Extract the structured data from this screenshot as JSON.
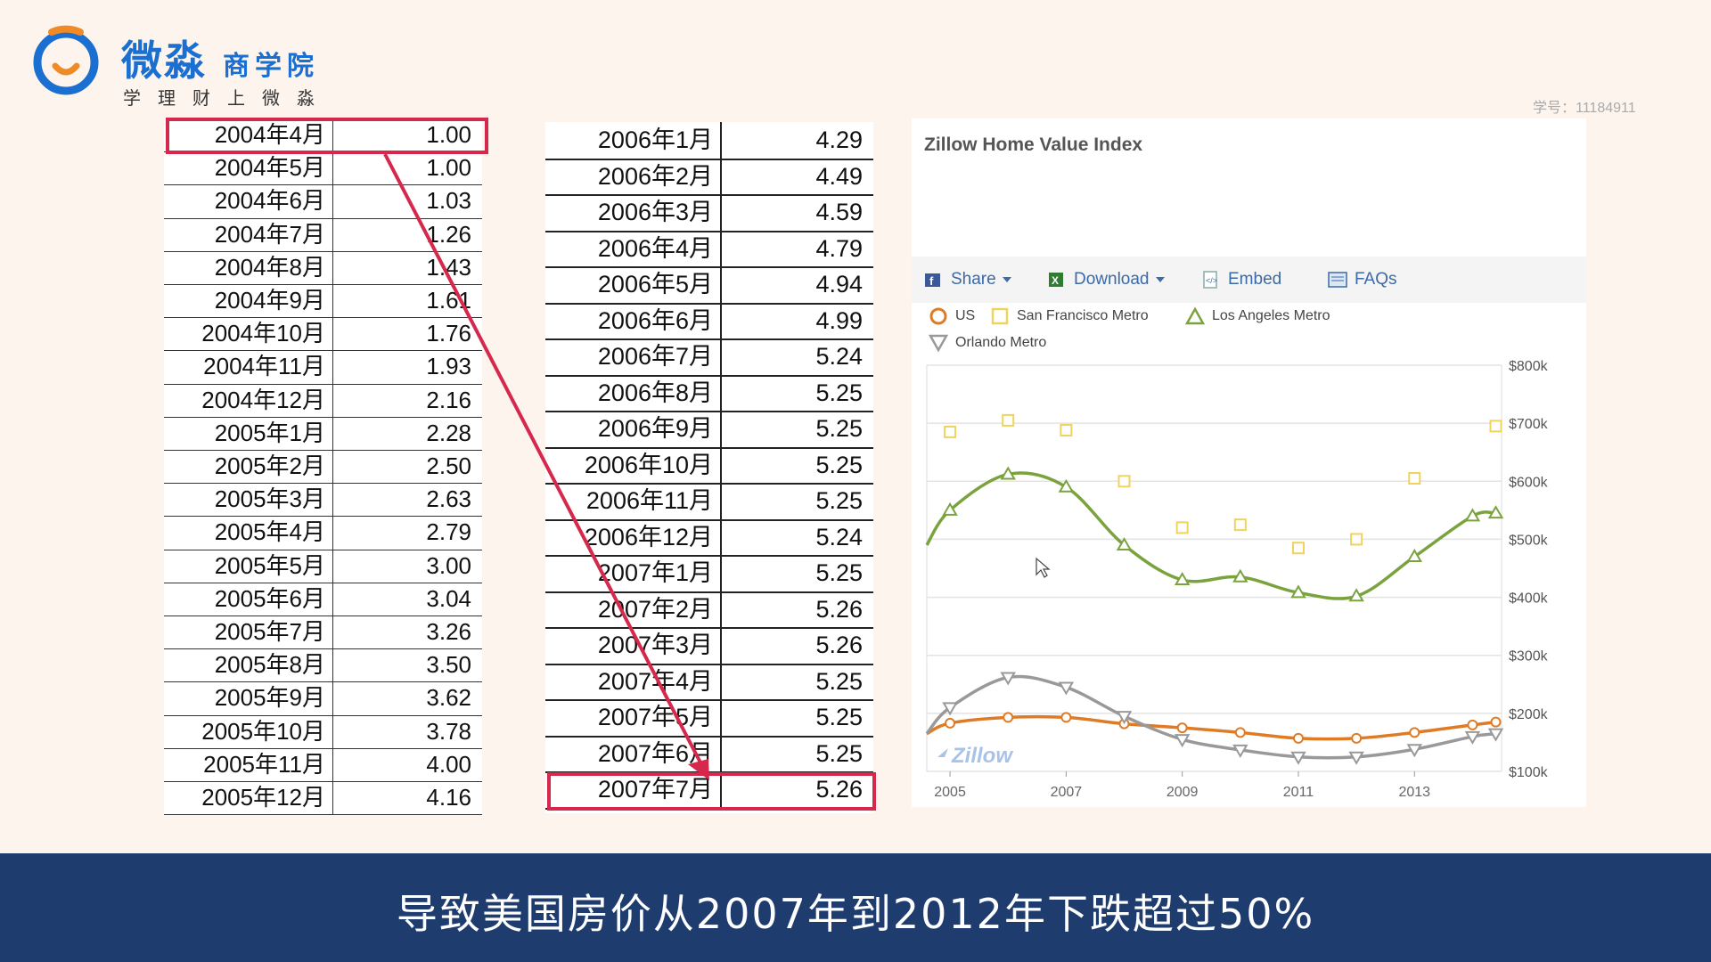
{
  "logo": {
    "title_main": "微淼",
    "title_sub": "商学院",
    "slogan": "学理财上微淼"
  },
  "student_id": "学号：11184911",
  "table_left": {
    "rows": [
      {
        "date": "2004年4月",
        "value": "1.00"
      },
      {
        "date": "2004年5月",
        "value": "1.00"
      },
      {
        "date": "2004年6月",
        "value": "1.03"
      },
      {
        "date": "2004年7月",
        "value": "1.26"
      },
      {
        "date": "2004年8月",
        "value": "1.43"
      },
      {
        "date": "2004年9月",
        "value": "1.61"
      },
      {
        "date": "2004年10月",
        "value": "1.76"
      },
      {
        "date": "2004年11月",
        "value": "1.93"
      },
      {
        "date": "2004年12月",
        "value": "2.16"
      },
      {
        "date": "2005年1月",
        "value": "2.28"
      },
      {
        "date": "2005年2月",
        "value": "2.50"
      },
      {
        "date": "2005年3月",
        "value": "2.63"
      },
      {
        "date": "2005年4月",
        "value": "2.79"
      },
      {
        "date": "2005年5月",
        "value": "3.00"
      },
      {
        "date": "2005年6月",
        "value": "3.04"
      },
      {
        "date": "2005年7月",
        "value": "3.26"
      },
      {
        "date": "2005年8月",
        "value": "3.50"
      },
      {
        "date": "2005年9月",
        "value": "3.62"
      },
      {
        "date": "2005年10月",
        "value": "3.78"
      },
      {
        "date": "2005年11月",
        "value": "4.00"
      },
      {
        "date": "2005年12月",
        "value": "4.16"
      }
    ]
  },
  "table_right": {
    "rows": [
      {
        "date": "2006年1月",
        "value": "4.29"
      },
      {
        "date": "2006年2月",
        "value": "4.49"
      },
      {
        "date": "2006年3月",
        "value": "4.59"
      },
      {
        "date": "2006年4月",
        "value": "4.79"
      },
      {
        "date": "2006年5月",
        "value": "4.94"
      },
      {
        "date": "2006年6月",
        "value": "4.99"
      },
      {
        "date": "2006年7月",
        "value": "5.24"
      },
      {
        "date": "2006年8月",
        "value": "5.25"
      },
      {
        "date": "2006年9月",
        "value": "5.25"
      },
      {
        "date": "2006年10月",
        "value": "5.25"
      },
      {
        "date": "2006年11月",
        "value": "5.25"
      },
      {
        "date": "2006年12月",
        "value": "5.24"
      },
      {
        "date": "2007年1月",
        "value": "5.25"
      },
      {
        "date": "2007年2月",
        "value": "5.26"
      },
      {
        "date": "2007年3月",
        "value": "5.26"
      },
      {
        "date": "2007年4月",
        "value": "5.25"
      },
      {
        "date": "2007年5月",
        "value": "5.25"
      },
      {
        "date": "2007年6月",
        "value": "5.25"
      },
      {
        "date": "2007年7月",
        "value": "5.26"
      }
    ]
  },
  "colors": {
    "highlight": "#d6284c",
    "brand_blue": "#1b6fd1",
    "brand_orange": "#f08a24",
    "subtitle_bar": "#1f3c6e",
    "us": "#e07b25",
    "sf": "#f0d35a",
    "la": "#7aa33e",
    "orlando": "#999999"
  },
  "chart_panel": {
    "title": "Zillow Home Value Index",
    "toolbar": {
      "share": "Share",
      "download": "Download",
      "embed": "Embed",
      "faqs": "FAQs"
    },
    "watermark": "Zillow"
  },
  "chart_data": {
    "type": "line",
    "title": "Zillow Home Value Index",
    "x_ticks": [
      "2005",
      "2007",
      "2009",
      "2011",
      "2013"
    ],
    "y_ticks": [
      "$100k",
      "$200k",
      "$300k",
      "$400k",
      "$500k",
      "$600k",
      "$700k",
      "$800k"
    ],
    "ylim": [
      100,
      800
    ],
    "xlim": [
      2004.6,
      2014.5
    ],
    "y_axis_side": "right",
    "grid": true,
    "legend_position": "top",
    "series": [
      {
        "name": "US",
        "marker": "circle",
        "x": [
          2004.6,
          2005,
          2006,
          2007,
          2008,
          2009,
          2010,
          2011,
          2012,
          2013,
          2014,
          2014.4
        ],
        "y": [
          165,
          183,
          193,
          193,
          182,
          175,
          167,
          157,
          157,
          167,
          180,
          185
        ]
      },
      {
        "name": "San Francisco Metro",
        "marker": "square",
        "x": [
          2005,
          2006,
          2007,
          2008,
          2009,
          2010,
          2011,
          2012,
          2013,
          2014.4
        ],
        "y": [
          685,
          705,
          688,
          600,
          520,
          525,
          485,
          500,
          605,
          695
        ],
        "line": false
      },
      {
        "name": "Los Angeles Metro",
        "marker": "triangle-up",
        "x": [
          2004.6,
          2005,
          2006,
          2007,
          2008,
          2009,
          2010,
          2011,
          2012,
          2013,
          2014,
          2014.4
        ],
        "y": [
          490,
          550,
          612,
          590,
          490,
          430,
          435,
          408,
          402,
          470,
          540,
          545
        ]
      },
      {
        "name": "Orlando Metro",
        "marker": "triangle-down",
        "x": [
          2004.6,
          2005,
          2006,
          2007,
          2008,
          2009,
          2010,
          2011,
          2012,
          2013,
          2014,
          2014.4
        ],
        "y": [
          165,
          210,
          262,
          245,
          195,
          155,
          137,
          125,
          125,
          138,
          160,
          165
        ]
      }
    ]
  },
  "subtitle": "导致美国房价从2007年到2012年下跌超过50%"
}
